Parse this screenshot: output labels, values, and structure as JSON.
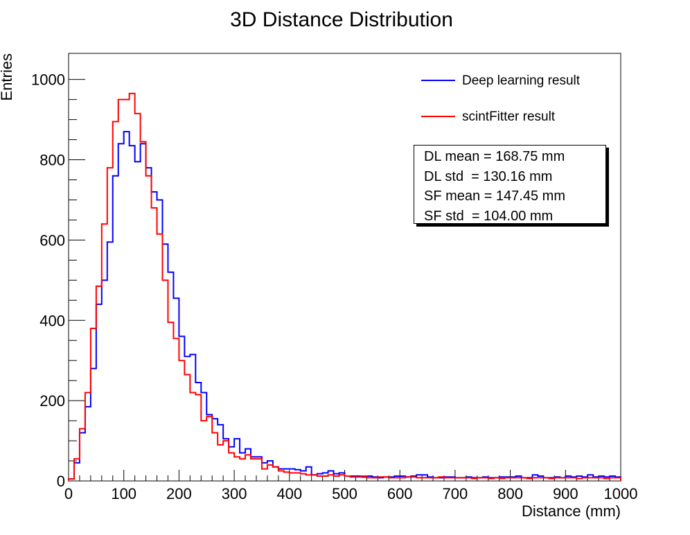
{
  "chart_data": {
    "type": "line",
    "title": "3D Distance Distribution",
    "xlabel": "Distance (mm)",
    "ylabel": "Entries",
    "xlim": [
      0,
      1000
    ],
    "ylim": [
      0,
      1065
    ],
    "x_ticks": [
      "0",
      "100",
      "200",
      "300",
      "400",
      "500",
      "600",
      "700",
      "800",
      "900",
      "1000"
    ],
    "y_ticks": [
      "0",
      "200",
      "400",
      "600",
      "800",
      "1000"
    ],
    "bin_width": 10,
    "series": [
      {
        "name": "Deep learning result",
        "color": "#0000ff",
        "values": [
          5,
          45,
          120,
          185,
          280,
          440,
          500,
          595,
          760,
          840,
          870,
          835,
          795,
          840,
          780,
          720,
          700,
          590,
          520,
          455,
          360,
          310,
          315,
          245,
          220,
          165,
          155,
          140,
          105,
          85,
          105,
          70,
          80,
          60,
          60,
          45,
          50,
          35,
          30,
          30,
          30,
          28,
          25,
          35,
          15,
          18,
          20,
          25,
          18,
          20,
          12,
          12,
          12,
          10,
          12,
          10,
          8,
          10,
          10,
          12,
          12,
          10,
          12,
          15,
          15,
          10,
          8,
          8,
          10,
          10,
          8,
          8,
          10,
          8,
          8,
          10,
          8,
          8,
          10,
          10,
          10,
          12,
          8,
          8,
          15,
          12,
          8,
          8,
          10,
          8,
          12,
          10,
          12,
          10,
          15,
          10,
          12,
          10,
          12,
          10
        ]
      },
      {
        "name": "scintFitter result",
        "color": "#ff0000",
        "values": [
          5,
          55,
          130,
          220,
          380,
          485,
          640,
          780,
          895,
          950,
          950,
          965,
          915,
          845,
          760,
          680,
          615,
          500,
          395,
          355,
          300,
          265,
          220,
          215,
          150,
          160,
          120,
          90,
          100,
          70,
          60,
          55,
          65,
          55,
          55,
          30,
          40,
          35,
          25,
          22,
          20,
          20,
          18,
          15,
          15,
          12,
          12,
          15,
          12,
          15,
          12,
          10,
          10,
          12,
          8,
          8,
          10,
          10,
          8,
          8,
          8,
          10,
          10,
          8,
          8,
          8,
          8,
          10,
          8,
          8,
          8,
          8,
          8,
          6,
          8,
          8,
          6,
          8,
          6,
          8,
          8,
          8,
          8,
          6,
          8,
          8,
          8,
          6,
          8,
          8,
          8,
          8,
          6,
          8,
          8,
          8,
          8,
          6,
          8,
          8
        ]
      }
    ],
    "legend": {
      "placement": "top-right",
      "entries": [
        "Deep learning result",
        "scintFitter result"
      ]
    },
    "stats": {
      "lines": [
        "DL mean = 168.75 mm",
        "DL std  = 130.16 mm",
        "SF mean = 147.45 mm",
        "SF std  = 104.00 mm"
      ]
    },
    "grid": false
  }
}
